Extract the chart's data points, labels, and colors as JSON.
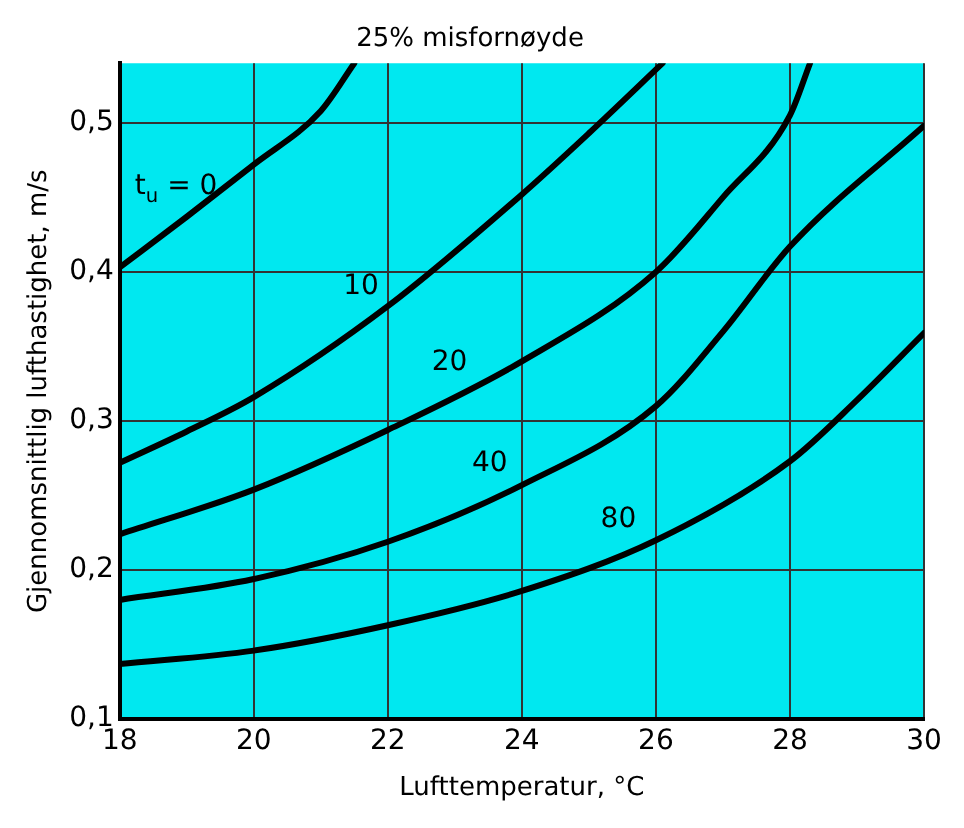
{
  "chart_data": {
    "type": "line",
    "title": "25% misfornøyde",
    "xlabel": "Lufttemperatur, °C",
    "ylabel": "Gjennomsnittlig lufthastighet, m/s",
    "series": [
      {
        "name": "t$_{u}$ = 0",
        "color": "#000000",
        "x": [
          18,
          19,
          20,
          21,
          21.5
        ],
        "values": [
          0.403,
          0.437,
          0.472,
          0.508,
          0.54
        ]
      },
      {
        "name": "10",
        "color": "#000000",
        "x": [
          18,
          19,
          20,
          22,
          24,
          25,
          26.1
        ],
        "values": [
          0.272,
          0.293,
          0.316,
          0.377,
          0.452,
          0.493,
          0.54
        ]
      },
      {
        "name": "20",
        "color": "#000000",
        "x": [
          18,
          20,
          22,
          24,
          26,
          27,
          28,
          28.3
        ],
        "values": [
          0.224,
          0.254,
          0.294,
          0.34,
          0.4,
          0.45,
          0.505,
          0.54
        ]
      },
      {
        "name": "40",
        "color": "#000000",
        "x": [
          18,
          20,
          22,
          24,
          26,
          27,
          28,
          30
        ],
        "values": [
          0.18,
          0.194,
          0.219,
          0.257,
          0.31,
          0.36,
          0.417,
          0.498
        ]
      },
      {
        "name": "80",
        "color": "#000000",
        "x": [
          18,
          20,
          22,
          24,
          26,
          28,
          29,
          30
        ],
        "values": [
          0.137,
          0.146,
          0.163,
          0.186,
          0.22,
          0.273,
          0.314,
          0.359
        ]
      }
    ],
    "xlim": [
      18,
      30
    ],
    "xticks": [
      18,
      20,
      22,
      24,
      26,
      28,
      30
    ],
    "ylim": [
      0.1,
      0.54
    ],
    "yticks": [
      {
        "value": 0.1,
        "label": "0,1"
      },
      {
        "value": 0.2,
        "label": "0,2"
      },
      {
        "value": 0.3,
        "label": "0,3"
      },
      {
        "value": 0.4,
        "label": "0,4"
      },
      {
        "value": 0.5,
        "label": "0,5"
      }
    ],
    "grid": true,
    "legend": false,
    "marker": "none",
    "line_style": "solid"
  }
}
